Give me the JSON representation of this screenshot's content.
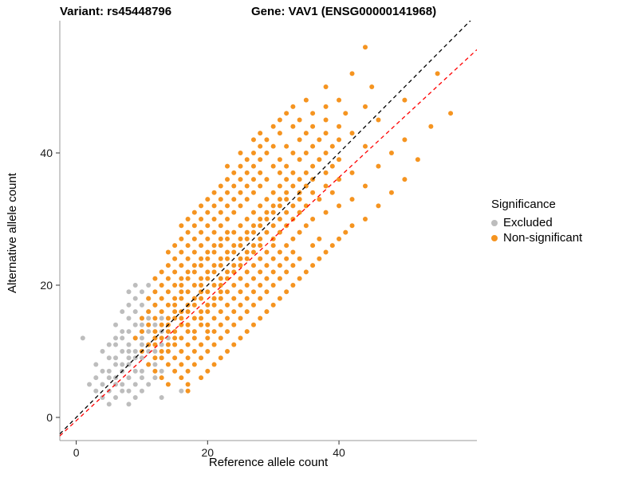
{
  "titles": {
    "variant": "Variant: rs45448796",
    "gene": "Gene: VAV1 (ENSG00000141968)"
  },
  "axes": {
    "x": {
      "label": "Reference allele count",
      "ticks": [
        0,
        20,
        40
      ],
      "range": [
        -2.5,
        61
      ]
    },
    "y": {
      "label": "Alternative allele count",
      "ticks": [
        0,
        20,
        40
      ],
      "range": [
        -3.5,
        60
      ]
    }
  },
  "legend": {
    "title": "Significance",
    "items": [
      {
        "label": "Excluded",
        "color": "#BDBDBD"
      },
      {
        "label": "Non-significant",
        "color": "#F59420"
      }
    ]
  },
  "chart_data": {
    "type": "scatter",
    "title": "Variant rs45448796 allele counts for gene VAV1 (ENSG00000141968)",
    "xlabel": "Reference allele count",
    "ylabel": "Alternative allele count",
    "xlim": [
      -2.5,
      61
    ],
    "ylim": [
      -3.5,
      60
    ],
    "grid": false,
    "legend_position": "right",
    "lines": [
      {
        "name": "identity-line",
        "style": "dashed",
        "color": "#000000",
        "slope": 1.0,
        "intercept": 0
      },
      {
        "name": "fit-line",
        "style": "dashed",
        "color": "#FF0000",
        "slope": 0.92,
        "intercept": -0.5
      }
    ],
    "series": [
      {
        "name": "Excluded",
        "color": "#BDBDBD",
        "points_by_alt_count": {
          "2": [
            5,
            8
          ],
          "3": [
            4,
            6,
            9,
            13
          ],
          "4": [
            3,
            5,
            7,
            8,
            10,
            16
          ],
          "5": [
            2,
            4,
            6,
            7,
            9,
            11
          ],
          "6": [
            3,
            5,
            6,
            8,
            10,
            12
          ],
          "7": [
            4,
            5,
            7,
            9,
            10,
            13
          ],
          "8": [
            3,
            6,
            7,
            8,
            11,
            12
          ],
          "9": [
            5,
            6,
            8,
            9,
            10,
            13
          ],
          "10": [
            4,
            7,
            8,
            9,
            11,
            12,
            14
          ],
          "11": [
            5,
            6,
            8,
            10,
            11,
            13
          ],
          "12": [
            1,
            6,
            7,
            9,
            10,
            12,
            14
          ],
          "13": [
            7,
            8,
            10,
            11,
            13
          ],
          "14": [
            6,
            9,
            10,
            12
          ],
          "15": [
            8,
            10,
            11,
            13
          ],
          "16": [
            7,
            9,
            11
          ],
          "17": [
            8,
            10,
            12
          ],
          "18": [
            9,
            11
          ],
          "19": [
            8,
            10
          ],
          "20": [
            9,
            11
          ]
        }
      },
      {
        "name": "Non-significant",
        "color": "#F59420",
        "points_by_alt_count": {
          "4": [
            17
          ],
          "5": [
            14,
            17
          ],
          "6": [
            13,
            16,
            19
          ],
          "7": [
            12,
            15,
            17,
            20
          ],
          "8": [
            11,
            14,
            16,
            18,
            21
          ],
          "9": [
            12,
            13,
            15,
            17,
            19,
            22
          ],
          "10": [
            10,
            13,
            14,
            16,
            18,
            20,
            23
          ],
          "11": [
            11,
            12,
            14,
            15,
            17,
            19,
            21,
            24
          ],
          "12": [
            9,
            12,
            13,
            15,
            16,
            18,
            20,
            22,
            25
          ],
          "13": [
            10,
            12,
            14,
            15,
            17,
            18,
            20,
            21,
            23,
            26
          ],
          "14": [
            11,
            13,
            14,
            16,
            17,
            19,
            20,
            22,
            24,
            27
          ],
          "15": [
            10,
            12,
            14,
            15,
            16,
            18,
            19,
            21,
            23,
            25,
            28
          ],
          "16": [
            11,
            13,
            15,
            16,
            17,
            19,
            20,
            22,
            24,
            26,
            29
          ],
          "17": [
            12,
            14,
            15,
            17,
            18,
            20,
            21,
            23,
            25,
            27,
            30
          ],
          "18": [
            11,
            13,
            15,
            16,
            18,
            19,
            21,
            22,
            24,
            26,
            28,
            31
          ],
          "19": [
            12,
            14,
            16,
            17,
            19,
            20,
            22,
            23,
            25,
            27,
            29,
            32
          ],
          "20": [
            13,
            15,
            16,
            18,
            19,
            21,
            22,
            24,
            26,
            28,
            30,
            33
          ],
          "21": [
            12,
            14,
            16,
            17,
            19,
            20,
            22,
            23,
            25,
            27,
            29,
            31,
            34
          ],
          "22": [
            13,
            15,
            17,
            18,
            20,
            21,
            23,
            24,
            26,
            28,
            30,
            32,
            35
          ],
          "23": [
            14,
            16,
            18,
            19,
            21,
            22,
            24,
            25,
            27,
            29,
            31,
            33,
            36
          ],
          "24": [
            15,
            17,
            19,
            20,
            22,
            23,
            25,
            26,
            28,
            30,
            32,
            34,
            37
          ],
          "25": [
            14,
            16,
            18,
            20,
            21,
            23,
            24,
            26,
            27,
            29,
            31,
            33,
            38
          ],
          "26": [
            15,
            17,
            19,
            21,
            22,
            24,
            25,
            27,
            28,
            30,
            32,
            36,
            39
          ],
          "27": [
            16,
            18,
            20,
            22,
            23,
            25,
            26,
            28,
            30,
            33,
            37,
            40
          ],
          "28": [
            17,
            19,
            21,
            23,
            24,
            26,
            27,
            29,
            31,
            34,
            41
          ],
          "29": [
            16,
            18,
            20,
            22,
            25,
            27,
            28,
            30,
            32,
            35,
            42
          ],
          "30": [
            17,
            19,
            21,
            23,
            26,
            28,
            29,
            31,
            33,
            36,
            44
          ],
          "31": [
            18,
            20,
            22,
            24,
            27,
            29,
            30,
            32,
            34,
            38
          ],
          "32": [
            19,
            21,
            23,
            25,
            28,
            30,
            31,
            33,
            35,
            40,
            46
          ],
          "33": [
            20,
            22,
            24,
            26,
            29,
            31,
            32,
            34,
            37,
            42
          ],
          "34": [
            21,
            23,
            25,
            27,
            30,
            32,
            34,
            36,
            39,
            48
          ],
          "35": [
            22,
            24,
            26,
            28,
            31,
            33,
            35,
            38,
            44
          ],
          "36": [
            23,
            25,
            27,
            29,
            32,
            34,
            36,
            40,
            50
          ],
          "37": [
            24,
            26,
            28,
            31,
            33,
            35,
            38,
            42
          ],
          "38": [
            23,
            25,
            27,
            30,
            32,
            36,
            39,
            46
          ],
          "39": [
            26,
            28,
            31,
            34,
            37,
            40,
            52
          ],
          "40": [
            25,
            27,
            29,
            33,
            35,
            38,
            48
          ],
          "41": [
            28,
            30,
            32,
            36,
            39,
            44
          ],
          "42": [
            27,
            29,
            34,
            37,
            40,
            50
          ],
          "43": [
            28,
            31,
            35,
            38,
            42
          ],
          "44": [
            30,
            33,
            36,
            40,
            54
          ],
          "45": [
            31,
            34,
            38,
            46
          ],
          "46": [
            32,
            36,
            41,
            57
          ],
          "47": [
            33,
            38,
            44
          ],
          "48": [
            35,
            40,
            50
          ],
          "50": [
            38,
            45
          ],
          "52": [
            42,
            55
          ],
          "56": [
            44
          ]
        }
      }
    ]
  }
}
